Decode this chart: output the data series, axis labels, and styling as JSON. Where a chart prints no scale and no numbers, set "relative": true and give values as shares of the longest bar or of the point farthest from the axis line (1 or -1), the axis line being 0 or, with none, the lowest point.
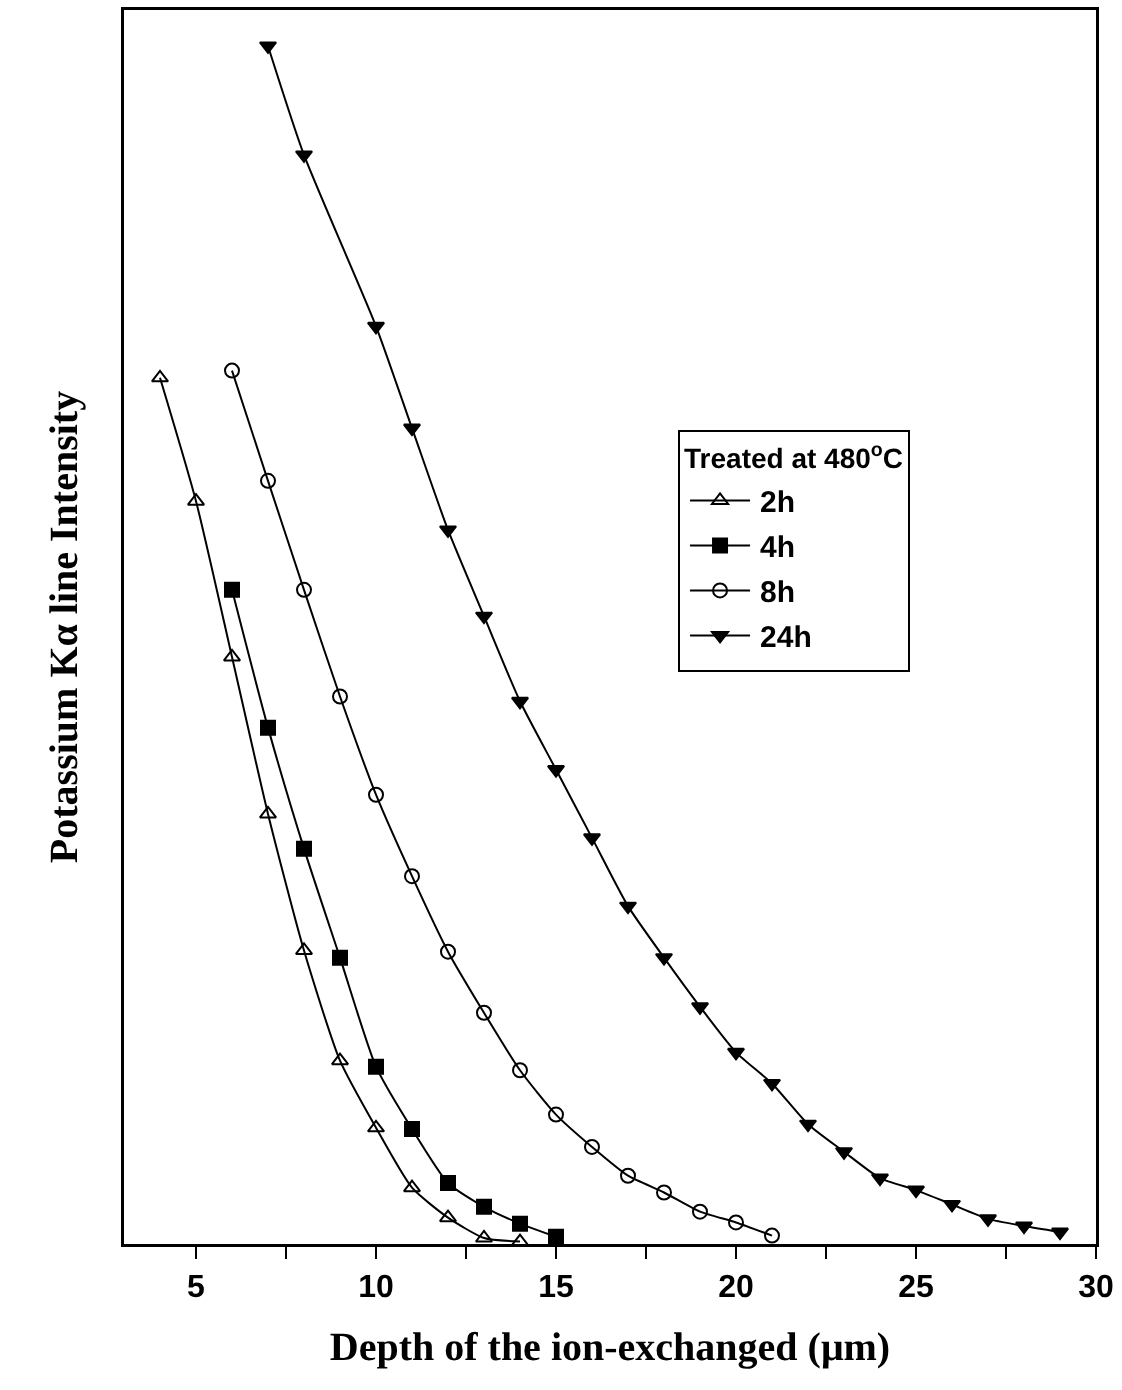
{
  "chart_data": {
    "type": "line",
    "relative": true,
    "xlabel": "Depth of the ion-exchanged (μm)",
    "ylabel": "Potassium Kα line Intensity",
    "legend_title": "Treated at 480$^{o}$C",
    "legend": "right",
    "xlim": [
      3,
      30
    ],
    "xticks": [
      5,
      {
        "value": 7.5,
        "label": null
      },
      10,
      {
        "value": 12.5,
        "label": null
      },
      15,
      {
        "value": 17.5,
        "label": null
      },
      20,
      {
        "value": 22.5,
        "label": null
      },
      25,
      {
        "value": 27.5,
        "label": null
      },
      30
    ],
    "grid": false,
    "line_style": "solid",
    "series": [
      {
        "name": "2h",
        "color": "#000000",
        "marker": "triangle-open",
        "x": [
          4,
          5,
          6,
          7,
          8,
          9,
          10,
          11,
          12,
          13,
          14
        ],
        "values": [
          0.723,
          0.62,
          0.49,
          0.359,
          0.245,
          0.153,
          0.097,
          0.047,
          0.022,
          0.005,
          0.002
        ]
      },
      {
        "name": "4h",
        "color": "#000000",
        "marker": "square",
        "x": [
          6,
          7,
          8,
          9,
          10,
          11,
          12,
          13,
          14,
          15
        ],
        "values": [
          0.546,
          0.431,
          0.33,
          0.239,
          0.148,
          0.096,
          0.051,
          0.031,
          0.017,
          0.006
        ]
      },
      {
        "name": "8h",
        "color": "#000000",
        "marker": "circle-open",
        "x": [
          6,
          7,
          8,
          9,
          10,
          11,
          12,
          13,
          14,
          15,
          16,
          17,
          18,
          19,
          20,
          21
        ],
        "values": [
          0.729,
          0.637,
          0.546,
          0.457,
          0.375,
          0.307,
          0.244,
          0.193,
          0.145,
          0.108,
          0.081,
          0.057,
          0.043,
          0.027,
          0.018,
          0.007
        ]
      },
      {
        "name": "24h",
        "color": "#000000",
        "marker": "triangle-down",
        "x": [
          7,
          8,
          10,
          11,
          12,
          13,
          14,
          15,
          16,
          17,
          18,
          19,
          20,
          21,
          22,
          23,
          24,
          25,
          26,
          27,
          28,
          29
        ],
        "values": [
          1,
          0.909,
          0.766,
          0.681,
          0.596,
          0.524,
          0.453,
          0.396,
          0.339,
          0.282,
          0.239,
          0.198,
          0.16,
          0.134,
          0.1,
          0.077,
          0.055,
          0.045,
          0.033,
          0.021,
          0.015,
          0.01
        ]
      }
    ]
  }
}
